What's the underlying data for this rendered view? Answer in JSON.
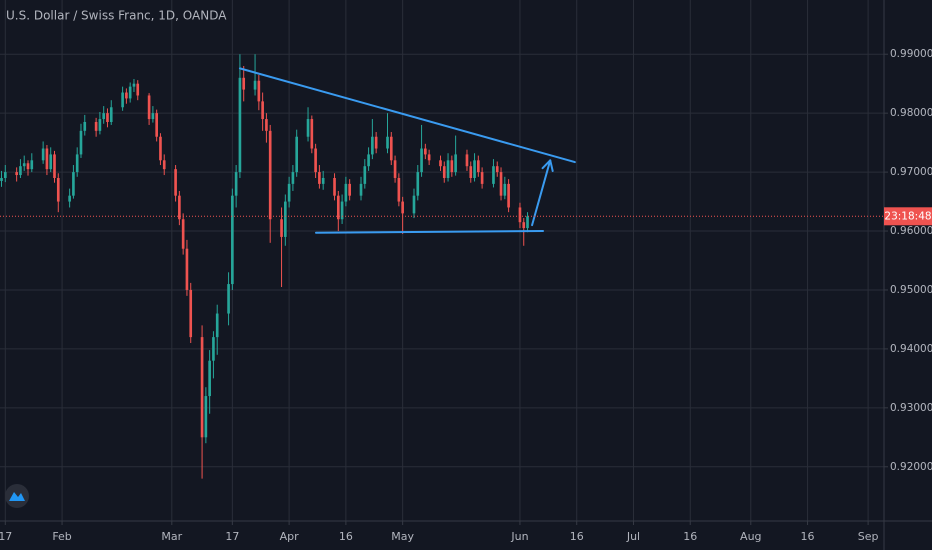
{
  "chart_data": {
    "type": "candlestick",
    "title": "U.S. Dollar / Swiss Franc, 1D, OANDA",
    "up_color": "#26a69a",
    "down_color": "#ef5350",
    "grid": true,
    "xlim": [
      15.6,
      249.2
    ],
    "ylim": [
      0.9108,
      0.9992
    ],
    "xticks": [
      {
        "value": 17,
        "label": "17"
      },
      {
        "value": 32,
        "label": "Feb"
      },
      {
        "value": 61,
        "label": "Mar"
      },
      {
        "value": 77,
        "label": "17"
      },
      {
        "value": 92,
        "label": "Apr"
      },
      {
        "value": 107,
        "label": "16"
      },
      {
        "value": 122,
        "label": "May"
      },
      {
        "value": 153,
        "label": "Jun"
      },
      {
        "value": 168,
        "label": "16"
      },
      {
        "value": 183,
        "label": "Jul"
      },
      {
        "value": 198,
        "label": "16"
      },
      {
        "value": 214,
        "label": "Aug"
      },
      {
        "value": 229,
        "label": "16"
      },
      {
        "value": 245,
        "label": "Sep"
      }
    ],
    "yticks": [
      {
        "value": 0.92,
        "label": "0.92000"
      },
      {
        "value": 0.93,
        "label": "0.93000"
      },
      {
        "value": 0.94,
        "label": "0.94000"
      },
      {
        "value": 0.95,
        "label": "0.95000"
      },
      {
        "value": 0.96,
        "label": "0.96000"
      },
      {
        "value": 0.97,
        "label": "0.97000"
      },
      {
        "value": 0.98,
        "label": "0.98000"
      },
      {
        "value": 0.99,
        "label": "0.99000"
      }
    ],
    "current_price": 0.9625,
    "countdown": "23:18:48",
    "countdown_color": "#ef5350",
    "drawing_color": "#3a9bf0",
    "drawings": [
      {
        "type": "trendline",
        "points": [
          [
            79.0,
            0.9876
          ],
          [
            167.5,
            0.9717
          ]
        ]
      },
      {
        "type": "trendline",
        "points": [
          [
            99.1,
            0.9597
          ],
          [
            159.1,
            0.96
          ]
        ]
      },
      {
        "type": "arrow",
        "points": [
          [
            156.2,
            0.961
          ],
          [
            161.0,
            0.972
          ]
        ]
      }
    ],
    "x": [
      16,
      17,
      20,
      21,
      22,
      23,
      24,
      27,
      28,
      29,
      30,
      31,
      34,
      35,
      36,
      37,
      38,
      41,
      42,
      43,
      44,
      45,
      48,
      49,
      50,
      51,
      52,
      55,
      56,
      57,
      58,
      59,
      62,
      63,
      64,
      65,
      66,
      69,
      70,
      71,
      72,
      73,
      76,
      77,
      78,
      79,
      80,
      83,
      84,
      85,
      86,
      87,
      90,
      91,
      92,
      93,
      94,
      97,
      98,
      99,
      100,
      101,
      104,
      105,
      106,
      107,
      108,
      111,
      112,
      113,
      114,
      115,
      118,
      119,
      120,
      121,
      122,
      125,
      126,
      127,
      128,
      129,
      132,
      133,
      134,
      135,
      136,
      139,
      140,
      141,
      142,
      143,
      146,
      147,
      148,
      149,
      150,
      153,
      154,
      155
    ],
    "candles": [
      [
        0.9685,
        0.9702,
        0.9675,
        0.969
      ],
      [
        0.969,
        0.9712,
        0.9683,
        0.97
      ],
      [
        0.97,
        0.9708,
        0.9684,
        0.9695
      ],
      [
        0.9695,
        0.9722,
        0.969,
        0.971
      ],
      [
        0.971,
        0.9728,
        0.9702,
        0.9715
      ],
      [
        0.9715,
        0.972,
        0.9694,
        0.9705
      ],
      [
        0.9705,
        0.9732,
        0.97,
        0.972
      ],
      [
        0.972,
        0.9752,
        0.9714,
        0.974
      ],
      [
        0.974,
        0.9746,
        0.9695,
        0.9705
      ],
      [
        0.9705,
        0.9742,
        0.97,
        0.973
      ],
      [
        0.973,
        0.9736,
        0.9682,
        0.969
      ],
      [
        0.969,
        0.9698,
        0.9632,
        0.965
      ],
      [
        0.965,
        0.9672,
        0.964,
        0.966
      ],
      [
        0.966,
        0.9712,
        0.9655,
        0.97
      ],
      [
        0.97,
        0.9742,
        0.9692,
        0.973
      ],
      [
        0.973,
        0.9782,
        0.9724,
        0.977
      ],
      [
        0.977,
        0.9797,
        0.9762,
        0.9785
      ],
      [
        0.9785,
        0.9792,
        0.976,
        0.977
      ],
      [
        0.977,
        0.9802,
        0.9764,
        0.979
      ],
      [
        0.979,
        0.9812,
        0.9782,
        0.98
      ],
      [
        0.98,
        0.9808,
        0.9776,
        0.9785
      ],
      [
        0.9785,
        0.9822,
        0.978,
        0.981
      ],
      [
        0.981,
        0.9845,
        0.9804,
        0.9835
      ],
      [
        0.9835,
        0.9842,
        0.9816,
        0.9825
      ],
      [
        0.9825,
        0.9852,
        0.9818,
        0.9845
      ],
      [
        0.9845,
        0.9858,
        0.9836,
        0.985
      ],
      [
        0.985,
        0.9856,
        0.9822,
        0.983
      ],
      [
        0.983,
        0.9834,
        0.978,
        0.979
      ],
      [
        0.979,
        0.9812,
        0.9784,
        0.98
      ],
      [
        0.98,
        0.9806,
        0.9752,
        0.976
      ],
      [
        0.976,
        0.9766,
        0.9712,
        0.972
      ],
      [
        0.972,
        0.973,
        0.9695,
        0.9705
      ],
      [
        0.9705,
        0.9712,
        0.965,
        0.966
      ],
      [
        0.966,
        0.9668,
        0.961,
        0.962
      ],
      [
        0.962,
        0.963,
        0.956,
        0.957
      ],
      [
        0.957,
        0.9585,
        0.949,
        0.95
      ],
      [
        0.95,
        0.9512,
        0.941,
        0.942
      ],
      [
        0.942,
        0.944,
        0.918,
        0.925
      ],
      [
        0.925,
        0.9335,
        0.924,
        0.932
      ],
      [
        0.932,
        0.9398,
        0.929,
        0.938
      ],
      [
        0.938,
        0.943,
        0.935,
        0.942
      ],
      [
        0.942,
        0.9475,
        0.939,
        0.946
      ],
      [
        0.946,
        0.953,
        0.944,
        0.951
      ],
      [
        0.951,
        0.9672,
        0.95,
        0.966
      ],
      [
        0.966,
        0.9712,
        0.964,
        0.97
      ],
      [
        0.97,
        0.99,
        0.969,
        0.986
      ],
      [
        0.986,
        0.988,
        0.982,
        0.984
      ],
      [
        0.984,
        0.99,
        0.983,
        0.9855
      ],
      [
        0.9855,
        0.9865,
        0.9805,
        0.982
      ],
      [
        0.982,
        0.9835,
        0.977,
        0.979
      ],
      [
        0.979,
        0.98,
        0.975,
        0.977
      ],
      [
        0.977,
        0.978,
        0.958,
        0.962
      ],
      [
        0.962,
        0.964,
        0.9505,
        0.959
      ],
      [
        0.959,
        0.9662,
        0.9575,
        0.965
      ],
      [
        0.965,
        0.9692,
        0.964,
        0.968
      ],
      [
        0.968,
        0.9712,
        0.9668,
        0.97
      ],
      [
        0.97,
        0.9772,
        0.9692,
        0.976
      ],
      [
        0.976,
        0.981,
        0.9752,
        0.979
      ],
      [
        0.979,
        0.9796,
        0.9732,
        0.974
      ],
      [
        0.974,
        0.9748,
        0.969,
        0.97
      ],
      [
        0.97,
        0.9712,
        0.9672,
        0.968
      ],
      [
        0.968,
        0.9702,
        0.967,
        0.969
      ],
      [
        0.969,
        0.9698,
        0.9652,
        0.966
      ],
      [
        0.966,
        0.9668,
        0.96,
        0.962
      ],
      [
        0.962,
        0.9662,
        0.9612,
        0.965
      ],
      [
        0.965,
        0.9692,
        0.9642,
        0.968
      ],
      [
        0.968,
        0.9688,
        0.9652,
        0.966
      ],
      [
        0.966,
        0.9692,
        0.9652,
        0.968
      ],
      [
        0.968,
        0.9722,
        0.9672,
        0.971
      ],
      [
        0.971,
        0.9742,
        0.9702,
        0.973
      ],
      [
        0.973,
        0.979,
        0.9722,
        0.976
      ],
      [
        0.976,
        0.9768,
        0.9732,
        0.974
      ],
      [
        0.974,
        0.98,
        0.9732,
        0.976
      ],
      [
        0.976,
        0.9768,
        0.9712,
        0.972
      ],
      [
        0.972,
        0.9728,
        0.9682,
        0.969
      ],
      [
        0.969,
        0.9698,
        0.9642,
        0.965
      ],
      [
        0.965,
        0.9658,
        0.9595,
        0.963
      ],
      [
        0.963,
        0.9672,
        0.9622,
        0.966
      ],
      [
        0.966,
        0.9712,
        0.9652,
        0.97
      ],
      [
        0.97,
        0.978,
        0.9692,
        0.974
      ],
      [
        0.974,
        0.9748,
        0.9722,
        0.973
      ],
      [
        0.973,
        0.9738,
        0.9712,
        0.972
      ],
      [
        0.972,
        0.9728,
        0.9702,
        0.971
      ],
      [
        0.971,
        0.9718,
        0.9682,
        0.969
      ],
      [
        0.969,
        0.9732,
        0.9684,
        0.972
      ],
      [
        0.972,
        0.9728,
        0.9692,
        0.97
      ],
      [
        0.97,
        0.9762,
        0.9694,
        0.973
      ],
      [
        0.973,
        0.9738,
        0.9702,
        0.971
      ],
      [
        0.971,
        0.9718,
        0.9682,
        0.969
      ],
      [
        0.969,
        0.9732,
        0.9684,
        0.972
      ],
      [
        0.972,
        0.9728,
        0.9692,
        0.97
      ],
      [
        0.97,
        0.9708,
        0.9672,
        0.968
      ],
      [
        0.968,
        0.9722,
        0.9674,
        0.971
      ],
      [
        0.971,
        0.9718,
        0.9692,
        0.97
      ],
      [
        0.97,
        0.9708,
        0.9652,
        0.966
      ],
      [
        0.966,
        0.9692,
        0.9654,
        0.968
      ],
      [
        0.968,
        0.9688,
        0.9632,
        0.964
      ],
      [
        0.964,
        0.9648,
        0.9605,
        0.9615
      ],
      [
        0.9615,
        0.9622,
        0.9575,
        0.9605
      ],
      [
        0.9605,
        0.9632,
        0.9598,
        0.9625
      ]
    ]
  }
}
